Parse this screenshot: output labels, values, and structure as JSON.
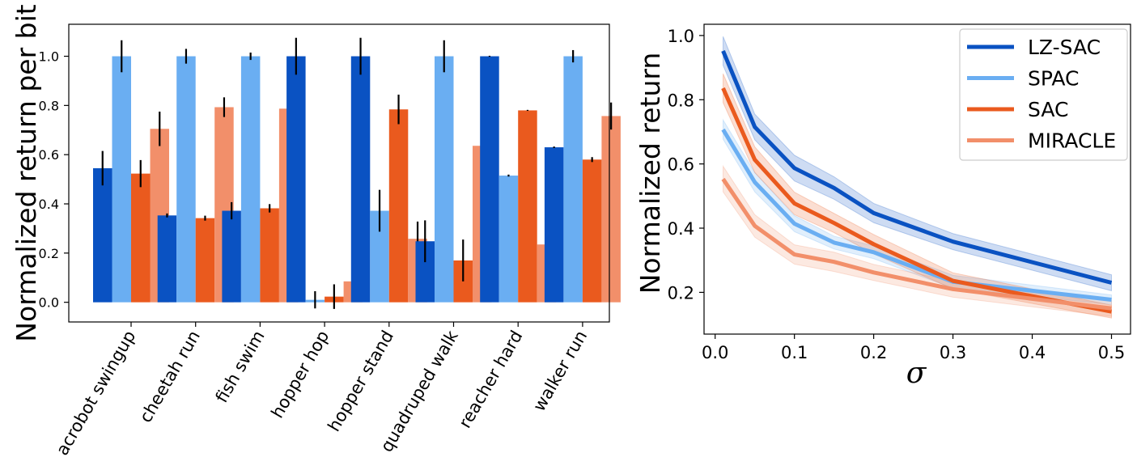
{
  "chart_data": [
    {
      "type": "bar",
      "ylabel": "Normalized return per bit",
      "xlabel": "",
      "ylim": [
        -0.08,
        1.13
      ],
      "yticks": [
        0.0,
        0.2,
        0.4,
        0.6,
        0.8,
        1.0
      ],
      "ytick_labels": [
        "0.0",
        "0.2",
        "0.4",
        "0.6",
        "0.8",
        "1.0"
      ],
      "categories": [
        "acrobot swingup",
        "cheetah run",
        "fish swim",
        "hopper hop",
        "hopper stand",
        "quadruped walk",
        "reacher hard",
        "walker run"
      ],
      "series": [
        {
          "name": "LZ-SAC",
          "color": "#0a52c2",
          "values": [
            0.545,
            0.353,
            0.372,
            1.0,
            1.0,
            0.248,
            1.0,
            0.63
          ],
          "errors": [
            0.07,
            0.008,
            0.035,
            0.075,
            0.075,
            0.085,
            0.002,
            0.003
          ]
        },
        {
          "name": "SPAC",
          "color": "#6aaef2",
          "values": [
            1.0,
            1.0,
            1.0,
            0.01,
            0.372,
            1.0,
            0.515,
            1.0
          ],
          "errors": [
            0.065,
            0.03,
            0.015,
            0.035,
            0.085,
            0.065,
            0.004,
            0.025
          ]
        },
        {
          "name": "SAC",
          "color": "#ea5a1e",
          "values": [
            0.523,
            0.342,
            0.382,
            0.023,
            0.784,
            0.17,
            0.78,
            0.58
          ],
          "errors": [
            0.055,
            0.01,
            0.017,
            0.05,
            0.06,
            0.085,
            0.002,
            0.01
          ]
        },
        {
          "name": "MIRACLE",
          "color": "#f28f6a",
          "values": [
            0.705,
            0.793,
            0.787,
            0.085,
            0.258,
            0.636,
            0.235,
            0.757
          ],
          "errors": [
            0.07,
            0.04,
            0.065,
            0.04,
            0.07,
            0.055,
            0.08,
            0.055
          ]
        }
      ]
    },
    {
      "type": "line",
      "xlabel": "σ",
      "ylabel": "Normalized return",
      "xlim": [
        -0.014,
        0.524
      ],
      "ylim": [
        0.07,
        1.035
      ],
      "xticks": [
        0.0,
        0.1,
        0.2,
        0.3,
        0.4,
        0.5
      ],
      "xtick_labels": [
        "0.0",
        "0.1",
        "0.2",
        "0.3",
        "0.4",
        "0.5"
      ],
      "yticks": [
        0.2,
        0.4,
        0.6,
        0.8,
        1.0
      ],
      "ytick_labels": [
        "0.2",
        "0.4",
        "0.6",
        "0.8",
        "1.0"
      ],
      "legend_position": "top-right",
      "x": [
        0.01,
        0.05,
        0.1,
        0.15,
        0.2,
        0.3,
        0.5
      ],
      "series": [
        {
          "name": "LZ-SAC",
          "color": "#0a52c2",
          "values": [
            0.952,
            0.715,
            0.587,
            0.525,
            0.447,
            0.358,
            0.23
          ],
          "band": [
            0.045,
            0.04,
            0.04,
            0.035,
            0.03,
            0.025,
            0.025
          ]
        },
        {
          "name": "SPAC",
          "color": "#6aaef2",
          "values": [
            0.707,
            0.543,
            0.414,
            0.355,
            0.325,
            0.233,
            0.177
          ],
          "band": [
            0.03,
            0.03,
            0.025,
            0.02,
            0.02,
            0.02,
            0.015
          ]
        },
        {
          "name": "SAC",
          "color": "#ea5a1e",
          "values": [
            0.836,
            0.613,
            0.477,
            0.416,
            0.35,
            0.236,
            0.14
          ],
          "band": [
            0.045,
            0.04,
            0.035,
            0.03,
            0.03,
            0.025,
            0.02
          ]
        },
        {
          "name": "MIRACLE",
          "color": "#f28f6a",
          "values": [
            0.553,
            0.407,
            0.318,
            0.295,
            0.262,
            0.21,
            0.15
          ],
          "band": [
            0.04,
            0.035,
            0.03,
            0.03,
            0.025,
            0.025,
            0.025
          ]
        }
      ]
    }
  ]
}
